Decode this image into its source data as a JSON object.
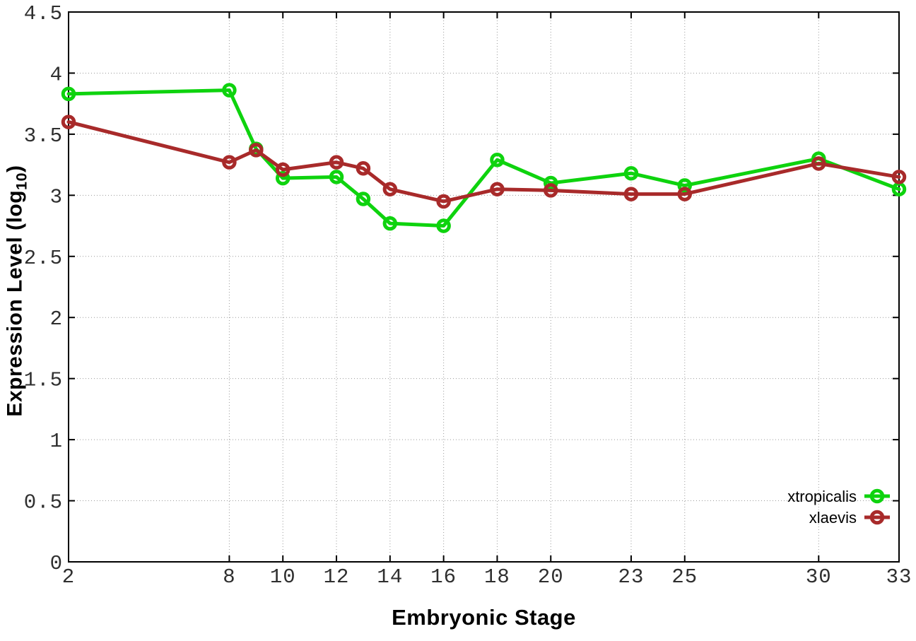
{
  "figure": {
    "ylabel_prefix": "Expression Level (log",
    "ylabel_sub": "10",
    "ylabel_suffix": ")",
    "xlabel": "Embryonic Stage"
  },
  "chart_data": {
    "type": "line",
    "title": "",
    "xlabel": "Embryonic Stage",
    "ylabel": "Expression Level (log10)",
    "x": [
      2,
      8,
      9,
      10,
      12,
      13,
      14,
      16,
      18,
      20,
      23,
      25,
      30,
      33
    ],
    "series": [
      {
        "name": "xtropicalis",
        "color": "#0ed30e",
        "values": [
          3.83,
          3.86,
          3.38,
          3.14,
          3.15,
          2.97,
          2.77,
          2.75,
          3.29,
          3.1,
          3.18,
          3.08,
          3.3,
          3.05
        ]
      },
      {
        "name": "xlaevis",
        "color": "#a82a2a",
        "values": [
          3.6,
          3.27,
          3.37,
          3.21,
          3.27,
          3.22,
          3.05,
          2.95,
          3.05,
          3.04,
          3.01,
          3.01,
          3.26,
          3.15
        ]
      }
    ],
    "xticks": [
      2,
      8,
      10,
      12,
      14,
      16,
      18,
      20,
      23,
      25,
      30,
      33
    ],
    "yticks": [
      0,
      0.5,
      1,
      1.5,
      2,
      2.5,
      3,
      3.5,
      4,
      4.5
    ],
    "xlim": [
      2,
      33
    ],
    "ylim": [
      0,
      4.5
    ],
    "grid": true,
    "grid_style": "dotted",
    "legend_position": "bottom-right",
    "marker": "open-circle",
    "axis_color": "#000000",
    "grid_color": "#9a9a9a",
    "tick_label_color": "#2f2f2f"
  }
}
